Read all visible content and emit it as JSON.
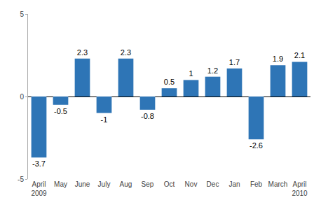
{
  "chart_data": {
    "type": "bar",
    "categories": [
      "April\n2009",
      "May",
      "June",
      "July",
      "Aug",
      "Sep",
      "Oct",
      "Nov",
      "Dec",
      "Jan",
      "Feb",
      "March",
      "April\n2010"
    ],
    "values": [
      -3.7,
      -0.5,
      2.3,
      -1.0,
      2.3,
      -0.8,
      0.5,
      1.0,
      1.2,
      1.7,
      -2.6,
      1.9,
      2.1
    ],
    "color": "#2e75b6",
    "ylim": [
      -5,
      5
    ],
    "yticks": [
      -5,
      0,
      5
    ],
    "grid": false,
    "data_labels": true
  }
}
